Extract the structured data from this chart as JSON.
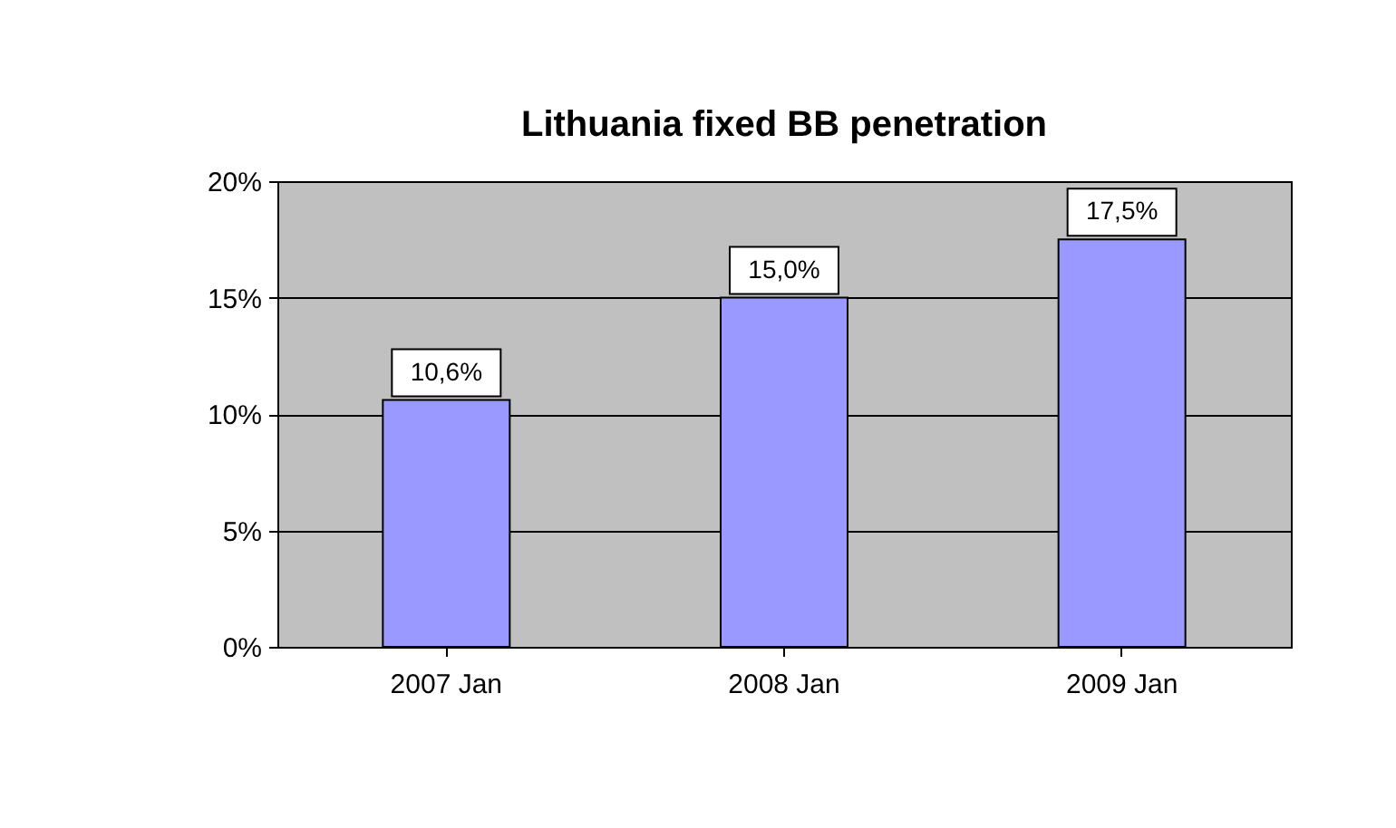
{
  "chart_data": {
    "type": "bar",
    "title": "Lithuania fixed BB penetration",
    "categories": [
      "2007 Jan",
      "2008 Jan",
      "2009 Jan"
    ],
    "values": [
      10.6,
      15.0,
      17.5
    ],
    "value_labels": [
      "10,6%",
      "15,0%",
      "17,5%"
    ],
    "color": "#9999ff",
    "ylim": [
      0,
      20
    ],
    "yticks": [
      {
        "value": 0,
        "label": "0%"
      },
      {
        "value": 5,
        "label": "5%"
      },
      {
        "value": 10,
        "label": "10%"
      },
      {
        "value": 15,
        "label": "15%"
      },
      {
        "value": 20,
        "label": "20%"
      }
    ],
    "grid": "y"
  }
}
